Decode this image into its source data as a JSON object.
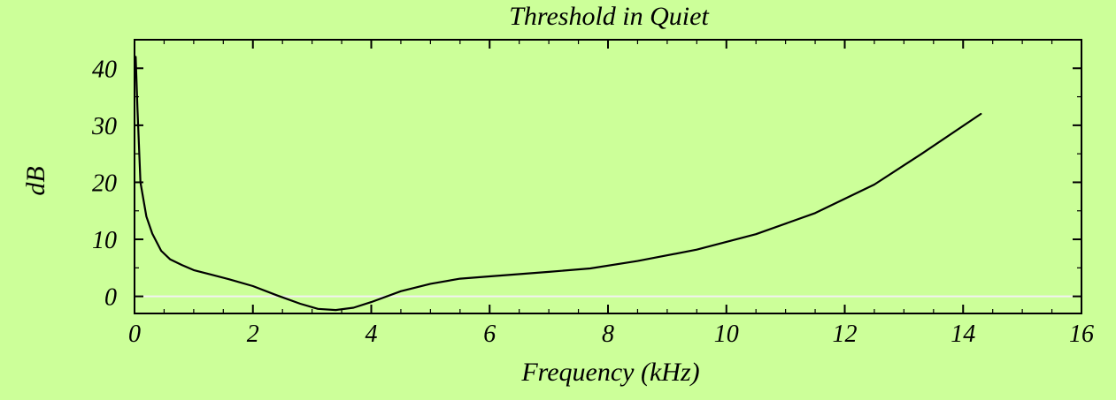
{
  "colors": {
    "background": "#ccff99",
    "line": "#000000",
    "frame": "#000000",
    "zero_line": "#f2f2f2"
  },
  "chart_data": {
    "type": "line",
    "title": "Threshold in Quiet",
    "xlabel": "Frequency (kHz)",
    "ylabel": "dB",
    "xlim": [
      0,
      16
    ],
    "ylim": [
      -3,
      45
    ],
    "xticks": [
      0,
      2,
      4,
      6,
      8,
      10,
      12,
      14,
      16
    ],
    "yticks": [
      0,
      10,
      20,
      30,
      40
    ],
    "xtick_labels": [
      "0",
      "2",
      "4",
      "6",
      "8",
      "10",
      "12",
      "14",
      "16"
    ],
    "ytick_labels": [
      "0",
      "10",
      "20",
      "30",
      "40"
    ],
    "grid": false,
    "reference_line_y": 0,
    "series": [
      {
        "x": [
          0.02,
          0.05,
          0.1,
          0.2,
          0.3,
          0.45,
          0.6,
          0.8,
          1.0,
          1.3,
          1.6,
          2.0,
          2.4,
          2.8,
          3.1,
          3.4,
          3.7,
          4.0,
          4.5,
          5.0,
          5.5,
          6.0,
          7.0,
          7.7,
          8.5,
          9.5,
          10.5,
          11.5,
          12.5,
          13.3,
          14.3
        ],
        "y": [
          42,
          33,
          20,
          14,
          11,
          8,
          6.5,
          5.5,
          4.6,
          3.8,
          3.0,
          1.8,
          0.2,
          -1.3,
          -2.2,
          -2.4,
          -2.0,
          -1.0,
          0.9,
          2.2,
          3.1,
          3.5,
          4.3,
          4.9,
          6.2,
          8.2,
          10.9,
          14.6,
          19.6,
          25.0,
          32.0
        ]
      }
    ]
  }
}
